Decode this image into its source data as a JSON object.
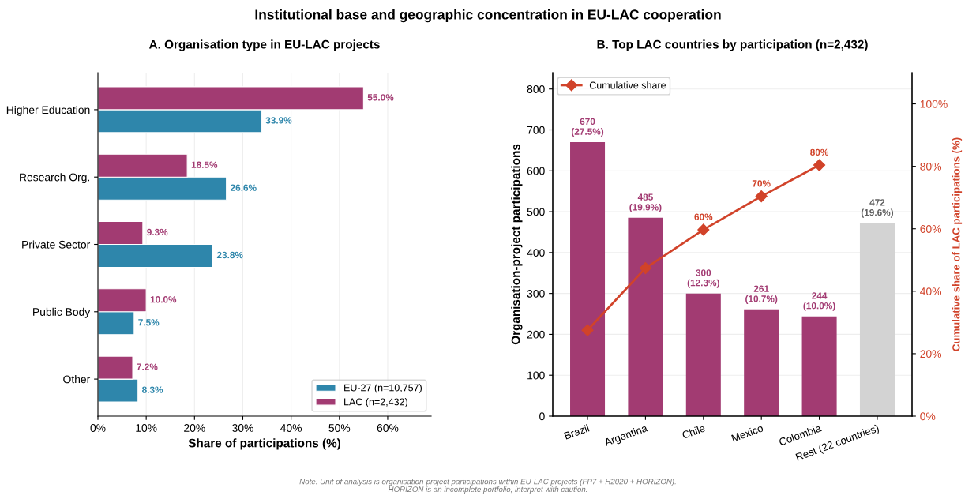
{
  "chart_data": [
    {
      "type": "bar",
      "orientation": "horizontal",
      "title": "A. Organisation type in EU-LAC projects",
      "xlabel": "Share of participations (%)",
      "categories": [
        "Higher Education",
        "Research Org.",
        "Private Sector",
        "Public Body",
        "Other"
      ],
      "series": [
        {
          "name": "EU-27 (n=10,757)",
          "color": "#2e86ab",
          "values": [
            33.9,
            26.6,
            23.8,
            7.5,
            8.3
          ],
          "value_labels": [
            "33.9%",
            "26.6%",
            "23.8%",
            "7.5%",
            "8.3%"
          ]
        },
        {
          "name": "LAC (n=2,432)",
          "color": "#a23b72",
          "values": [
            55.0,
            18.5,
            9.3,
            10.0,
            7.2
          ],
          "value_labels": [
            "55.0%",
            "18.5%",
            "9.3%",
            "10.0%",
            "7.2%"
          ]
        }
      ],
      "xlim": [
        0,
        69
      ],
      "xticks": [
        {
          "value": 0,
          "label": "0%"
        },
        {
          "value": 10,
          "label": "10%"
        },
        {
          "value": 20,
          "label": "20%"
        },
        {
          "value": 30,
          "label": "30%"
        },
        {
          "value": 40,
          "label": "40%"
        },
        {
          "value": 50,
          "label": "50%"
        },
        {
          "value": 60,
          "label": "60%"
        }
      ],
      "grid": "x",
      "legend": "bottom right",
      "annotations": [
        "Institutional base and geographic concentration in EU-LAC cooperation",
        "Note: Unit of analysis is organisation-project participations within EU-LAC projects (FP7 + H2020 + HORIZON).\nHORIZON is an incomplete portfolio; interpret with caution."
      ]
    },
    {
      "type": "bar",
      "title": "B. Top LAC countries by participation (n=2,432)",
      "ylabel": "Organisation-project participations",
      "y2label": "Cumulative share of LAC participations (%)",
      "categories": [
        "Brazil",
        "Argentina",
        "Chile",
        "Mexico",
        "Colombia",
        "Rest (22 countries)"
      ],
      "series": [
        {
          "type": "bar",
          "colors": [
            "#a23b72",
            "#a23b72",
            "#a23b72",
            "#a23b72",
            "#a23b72",
            "#d3d3d3"
          ],
          "values": [
            670,
            485,
            300,
            261,
            244,
            472
          ],
          "value_labels": [
            "670\n(27.5%)",
            "485\n(19.9%)",
            "300\n(12.3%)",
            "261\n(10.7%)",
            "244\n(10.0%)",
            "472\n(19.6%)"
          ]
        },
        {
          "type": "line",
          "name": "Cumulative share",
          "axis": "y2",
          "color": "#d1432a",
          "marker": "diamond",
          "values": [
            27.5,
            47.4,
            59.7,
            70.4,
            80.4,
            null
          ],
          "value_labels": [
            null,
            null,
            "60%",
            "70%",
            "80%",
            null
          ]
        }
      ],
      "ylim": [
        0,
        840
      ],
      "yticks": [
        0,
        100,
        200,
        300,
        400,
        500,
        600,
        700,
        800
      ],
      "y2lim": [
        0,
        110
      ],
      "y2ticks": [
        {
          "value": 0,
          "label": "0%"
        },
        {
          "value": 20,
          "label": "20%"
        },
        {
          "value": 40,
          "label": "40%"
        },
        {
          "value": 60,
          "label": "60%"
        },
        {
          "value": 80,
          "label": "80%"
        },
        {
          "value": 100,
          "label": "100%"
        }
      ],
      "grid": "y",
      "legend": "top left"
    }
  ]
}
